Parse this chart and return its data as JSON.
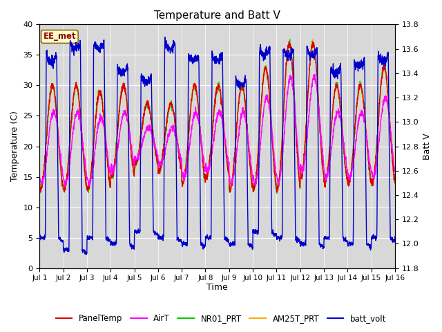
{
  "title": "Temperature and Batt V",
  "xlabel": "Time",
  "ylabel_left": "Temperature (C)",
  "ylabel_right": "Batt V",
  "ylim_left": [
    0,
    40
  ],
  "ylim_right": [
    11.8,
    13.8
  ],
  "annotation": "EE_met",
  "plot_bg_color": "#d8d8d8",
  "fig_bg_color": "#ffffff",
  "series": {
    "PanelTemp": {
      "color": "#dd0000",
      "lw": 1.0
    },
    "AirT": {
      "color": "#ff00ff",
      "lw": 1.0
    },
    "NR01_PRT": {
      "color": "#00cc00",
      "lw": 1.0
    },
    "AM25T_PRT": {
      "color": "#ffaa00",
      "lw": 1.0
    },
    "batt_volt": {
      "color": "#0000cc",
      "lw": 1.0
    }
  },
  "xtick_labels": [
    "Jul 1",
    "Jul 2",
    "Jul 3",
    "Jul 4",
    "Jul 5",
    "Jul 6",
    "Jul 7",
    "Jul 8",
    "Jul 9",
    "Jul 10",
    "Jul 11",
    "Jul 12",
    "Jul 13",
    "Jul 14",
    "Jul 15",
    "Jul 16"
  ],
  "yticks_left": [
    0,
    5,
    10,
    15,
    20,
    25,
    30,
    35,
    40
  ],
  "yticks_right": [
    11.8,
    12.0,
    12.2,
    12.4,
    12.6,
    12.8,
    13.0,
    13.2,
    13.4,
    13.6,
    13.8
  ],
  "n_days": 15,
  "pts_per_day": 144
}
